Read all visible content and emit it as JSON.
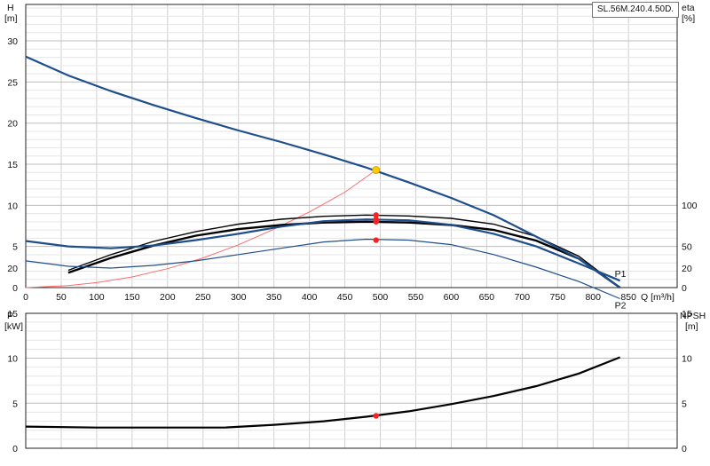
{
  "model_label": "SL.56M.240.4.50D.",
  "colors": {
    "head_curve": "#1f4e8c",
    "power_curve": "#1f4e8c",
    "system_curve": "#ff6b6b",
    "eff_curve": "#000000",
    "npsh_curve": "#000000",
    "duty_point": "#ff2020",
    "duty_point_head": "#ffcc00",
    "grid": "#cfcfcf"
  },
  "chart_data": [
    {
      "type": "line",
      "id": "performance",
      "xlabel": "Q [m³/h]",
      "ylabel_left": [
        "H",
        "[m]"
      ],
      "ylabel_right": [
        "eta",
        "[%]"
      ],
      "xlim": [
        0,
        850
      ],
      "ylim_left": [
        0,
        33
      ],
      "ylim_right_data": [
        0,
        350
      ],
      "x_ticks": [
        0,
        50,
        100,
        150,
        200,
        250,
        300,
        350,
        400,
        450,
        500,
        550,
        600,
        650,
        700,
        750,
        800,
        850
      ],
      "x_tick_labels": [
        "0",
        "50",
        "100",
        "150",
        "200",
        "250",
        "300",
        "350",
        "400",
        "450",
        "500",
        "550",
        "600",
        "650",
        "700",
        "750",
        "800",
        "850"
      ],
      "y_ticks_left": [
        0,
        5,
        10,
        15,
        20,
        25,
        30
      ],
      "y_tick_labels_left": [
        "0",
        "5",
        "10",
        "15",
        "20",
        "25",
        "30"
      ],
      "y_ticks_right": [
        0,
        50,
        100
      ],
      "y_tick_labels_right": [
        "0",
        "50",
        "100"
      ],
      "grid": true,
      "series": [
        {
          "key": "head",
          "axis": "left",
          "x": [
            0,
            60,
            120,
            180,
            240,
            300,
            360,
            420,
            480,
            540,
            600,
            660,
            720,
            780,
            838
          ],
          "y": [
            28.1,
            25.8,
            23.9,
            22.2,
            20.6,
            19.1,
            17.7,
            16.2,
            14.6,
            12.8,
            10.9,
            8.8,
            6.2,
            3.5,
            0
          ]
        },
        {
          "key": "system",
          "axis": "left",
          "x": [
            0,
            60,
            100,
            150,
            200,
            250,
            300,
            350,
            400,
            450,
            494
          ],
          "y": [
            0,
            0.25,
            0.6,
            1.3,
            2.3,
            3.6,
            5.2,
            7.1,
            9.2,
            11.6,
            14.3
          ]
        },
        {
          "key": "eta_outer",
          "axis": "right",
          "x": [
            60,
            120,
            180,
            240,
            300,
            360,
            420,
            480,
            540,
            600,
            660,
            720,
            780,
            838
          ],
          "y": [
            21,
            40,
            56,
            68,
            77,
            83,
            86.5,
            88,
            87,
            84,
            77,
            62,
            38,
            0
          ]
        },
        {
          "key": "eta_inner",
          "axis": "right",
          "x": [
            60,
            120,
            180,
            240,
            300,
            360,
            420,
            480,
            540,
            600,
            660,
            720,
            780,
            838
          ],
          "y": [
            18,
            36,
            51,
            63,
            71,
            76,
            79,
            80,
            79,
            76,
            70,
            57,
            35,
            0
          ]
        }
      ],
      "points": [
        {
          "key": "duty_head",
          "axis": "left",
          "x": 494,
          "y": 14.3
        },
        {
          "key": "duty_eta_outer",
          "axis": "right",
          "x": 494,
          "y": 88
        },
        {
          "key": "duty_eta_inner",
          "axis": "right",
          "x": 494,
          "y": 80
        }
      ]
    },
    {
      "type": "line",
      "id": "power_npsh",
      "ylabel_left": [
        "P",
        "[kW]"
      ],
      "ylabel_right": [
        "NPSH",
        "[m]"
      ],
      "xlim": [
        0,
        850
      ],
      "ylim_left": [
        0,
        27
      ],
      "y_ticks_left": [
        0,
        5,
        10,
        15,
        20
      ],
      "y_tick_labels_left": [
        "0",
        "5",
        "10",
        "15",
        "20"
      ],
      "y_ticks_right": [
        0,
        5,
        10,
        15,
        20
      ],
      "y_tick_labels_right": [
        "0",
        "5",
        "10",
        "15",
        "20"
      ],
      "grid": true,
      "series_labels": {
        "P1": "P1",
        "P2": "P2"
      },
      "series": [
        {
          "key": "P1",
          "name": "P1",
          "axis": "left",
          "x": [
            0,
            60,
            120,
            180,
            240,
            300,
            360,
            420,
            480,
            540,
            600,
            660,
            720,
            780,
            838
          ],
          "y": [
            23.0,
            22.4,
            22.2,
            22.5,
            23.1,
            23.8,
            24.6,
            25.2,
            25.4,
            25.3,
            24.8,
            23.8,
            22.4,
            20.5,
            18.6
          ]
        },
        {
          "key": "P2",
          "name": "P2",
          "axis": "left",
          "x": [
            0,
            60,
            120,
            180,
            240,
            300,
            360,
            420,
            480,
            540,
            600,
            660,
            720,
            780,
            838
          ],
          "y": [
            20.8,
            20.2,
            20.0,
            20.3,
            20.8,
            21.5,
            22.2,
            22.9,
            23.2,
            23.1,
            22.6,
            21.5,
            20.1,
            18.5,
            16.6
          ]
        },
        {
          "key": "npsh",
          "axis": "left",
          "x": [
            0,
            100,
            200,
            280,
            350,
            420,
            480,
            540,
            600,
            660,
            720,
            780,
            838
          ],
          "y": [
            2.4,
            2.3,
            2.3,
            2.3,
            2.6,
            3.0,
            3.5,
            4.1,
            4.9,
            5.8,
            6.9,
            8.3,
            10.1
          ]
        }
      ],
      "points": [
        {
          "key": "duty_P1",
          "axis": "left",
          "x": 494,
          "y": 25.4
        },
        {
          "key": "duty_P2",
          "axis": "left",
          "x": 494,
          "y": 23.1
        },
        {
          "key": "duty_npsh",
          "axis": "left",
          "x": 494,
          "y": 3.6
        }
      ]
    }
  ]
}
